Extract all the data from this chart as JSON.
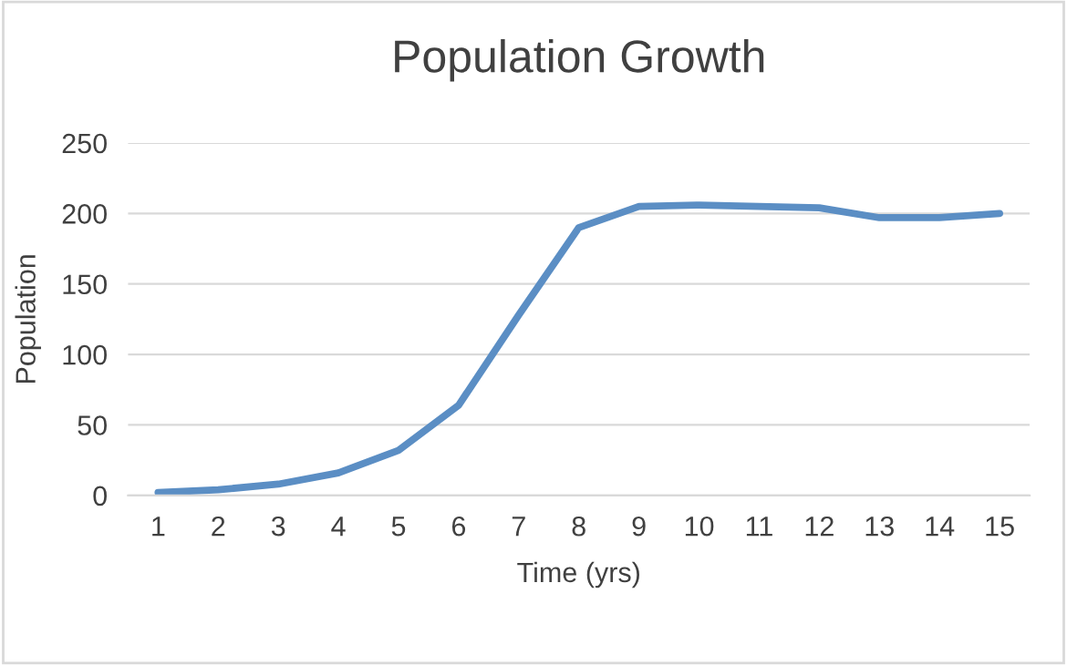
{
  "chart_data": {
    "type": "line",
    "title": "Population Growth",
    "xlabel": "Time (yrs)",
    "ylabel": "Population",
    "categories": [
      "1",
      "2",
      "3",
      "4",
      "5",
      "6",
      "7",
      "8",
      "9",
      "10",
      "11",
      "12",
      "13",
      "14",
      "15"
    ],
    "series": [
      {
        "color": "#5b8ec4",
        "values": [
          2,
          4,
          8,
          16,
          32,
          64,
          128,
          190,
          205,
          206,
          205,
          204,
          197,
          197,
          200
        ]
      }
    ],
    "ylim": [
      0,
      250
    ],
    "yticks": [
      0,
      50,
      100,
      150,
      200,
      250
    ],
    "grid": "y",
    "marker": "none",
    "line_style": "solid"
  }
}
